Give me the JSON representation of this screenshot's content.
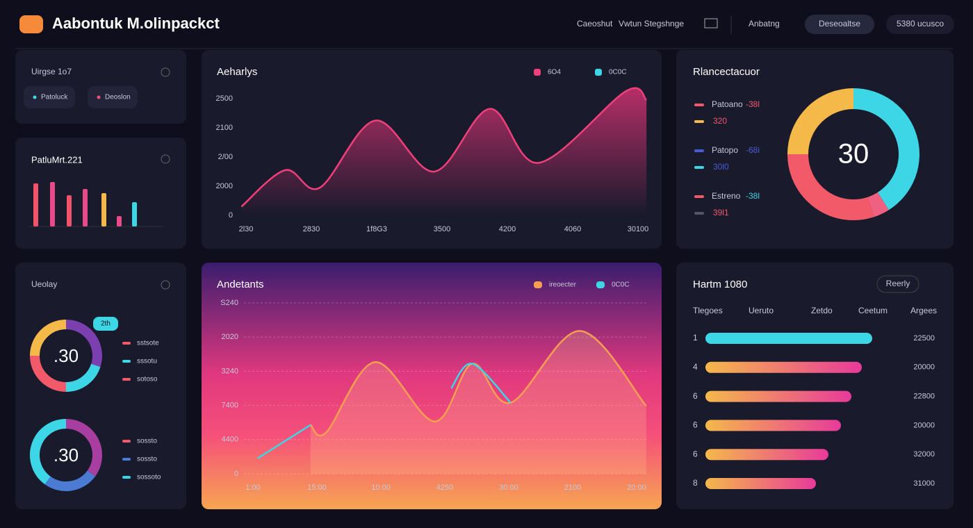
{
  "header": {
    "logo": "Aabontuk M.olinpackct",
    "nav": [
      "Caeoshut",
      "Vwtun Stegshnge"
    ],
    "tab": "Anbatng",
    "button": "Deseoaltse",
    "user": "5380 ucusco"
  },
  "summary": {
    "title": "Uirgse 1o7",
    "chips": [
      {
        "label": "Patoluck",
        "color": "#3dd6e6"
      },
      {
        "label": "Deoslon",
        "color": "#f0507a"
      }
    ]
  },
  "mini_bars": {
    "type": "bar",
    "title": "PatluMrt.221",
    "values": [
      62,
      64,
      45,
      54,
      48,
      15,
      35
    ],
    "colors": [
      "#f2536a",
      "#e84a8a",
      "#f2536a",
      "#e84a8a",
      "#f5b94a",
      "#e84a8a",
      "#3dd6e6"
    ],
    "ylim": [
      0,
      70
    ]
  },
  "activity": {
    "type": "area",
    "title": "Aeharlys",
    "legend": [
      {
        "name": "6O4",
        "color": "#f0407a"
      },
      {
        "name": "0C0C",
        "color": "#3dd6e6"
      }
    ],
    "x": [
      -0.07,
      0.6,
      1.13,
      1.98,
      2.88,
      3.73,
      4.48,
      5.81,
      6.13
    ],
    "values": [
      0.3,
      1.55,
      0.95,
      3.25,
      1.5,
      3.65,
      1.8,
      4.25,
      3.95
    ],
    "color": "#f0407a",
    "xlim": [
      0,
      6
    ],
    "ylim": [
      0,
      4
    ],
    "xticks": [
      {
        "value": 0,
        "label": "2l30"
      },
      {
        "value": 1,
        "label": "2830"
      },
      {
        "value": 2,
        "label": "1f8G3"
      },
      {
        "value": 3,
        "label": "3500"
      },
      {
        "value": 4,
        "label": "4200"
      },
      {
        "value": 5,
        "label": "4060"
      },
      {
        "value": 6,
        "label": "30100"
      }
    ],
    "yticks": [
      {
        "value": 0,
        "label": "0"
      },
      {
        "value": 1,
        "label": "2000"
      },
      {
        "value": 2,
        "label": "2/00"
      },
      {
        "value": 3,
        "label": "2100"
      },
      {
        "value": 4,
        "label": "2500"
      }
    ],
    "grid": false
  },
  "balance": {
    "type": "pie",
    "title": "Rlancectacuor",
    "center": "30",
    "values": [
      41,
      4,
      30,
      25
    ],
    "colors": [
      "#3dd6e6",
      "#f06080",
      "#f25a6a",
      "#f5b94a"
    ],
    "legend": [
      {
        "name": "Patoano",
        "delta": "-38l",
        "value": "320",
        "colors": [
          "#f25a6a",
          "#f5b94a"
        ]
      },
      {
        "name": "Patopo",
        "delta": "-68i",
        "value": "30l0",
        "colors": [
          "#4a5cd4",
          "#3dd6e6"
        ]
      },
      {
        "name": "Estreno",
        "delta": "-38l",
        "value": "39l1",
        "colors": [
          "#f25a6a",
          "#555566"
        ]
      }
    ]
  },
  "overview": {
    "title": "Ueolay",
    "badge": "2th",
    "donuts": [
      {
        "type": "pie",
        "center": ".30",
        "values": [
          30,
          20,
          25,
          25
        ],
        "colors": [
          "#7b3fb0",
          "#3dd6e6",
          "#f25a6a",
          "#f5b94a"
        ],
        "legend": [
          {
            "name": "sstsote",
            "color": "#f25a6a"
          },
          {
            "name": "sssotu",
            "color": "#3dd6e6"
          },
          {
            "name": "sotoso",
            "color": "#f25a6a"
          }
        ]
      },
      {
        "type": "pie",
        "center": ".30",
        "values": [
          35,
          25,
          40
        ],
        "colors": [
          "#a83fa0",
          "#4a7cd4",
          "#3dd6e6"
        ],
        "legend": [
          {
            "name": "sossto",
            "color": "#f25a6a"
          },
          {
            "name": "sossto",
            "color": "#4a7cd4"
          },
          {
            "name": "sossoto",
            "color": "#3dd6e6"
          }
        ]
      }
    ]
  },
  "trend": {
    "type": "line",
    "title": "Andetants",
    "xlim": [
      0,
      6
    ],
    "ylim": [
      0,
      5
    ],
    "grid": true,
    "series": [
      {
        "name": "ireoecter",
        "color": "#f5a050",
        "x": [
          0.9,
          1.15,
          1.91,
          2.84,
          3.43,
          4.03,
          5.11,
          6.15
        ],
        "values": [
          1.43,
          1.22,
          3.27,
          1.53,
          3.22,
          2.08,
          4.18,
          1.98
        ]
      },
      {
        "name": "0C0C",
        "color": "#3dd6e6",
        "x": [
          0.07,
          0.9,
          2.0,
          3.1,
          3.43,
          4.03
        ],
        "values": [
          0.45,
          1.43,
          null,
          2.5,
          3.22,
          2.08
        ]
      }
    ],
    "xticks": [
      {
        "value": 0,
        "label": "1:00"
      },
      {
        "value": 1,
        "label": "15:00"
      },
      {
        "value": 2,
        "label": "10:00"
      },
      {
        "value": 3,
        "label": "4250"
      },
      {
        "value": 4,
        "label": "30:00"
      },
      {
        "value": 5,
        "label": "2100"
      },
      {
        "value": 6,
        "label": "20:00"
      }
    ],
    "yticks": [
      {
        "value": 0,
        "label": "0"
      },
      {
        "value": 1,
        "label": "4400"
      },
      {
        "value": 2,
        "label": "7400"
      },
      {
        "value": 3,
        "label": "3240"
      },
      {
        "value": 4,
        "label": "2020"
      },
      {
        "value": 5,
        "label": "S240"
      }
    ]
  },
  "ranking": {
    "title": "Hartm 1080",
    "button": "Reerly",
    "columns": [
      "Tlegoes",
      "Ueruto",
      "Zetdo",
      "Ceetum",
      "Argees"
    ],
    "xlim": [
      0,
      240
    ],
    "rows": [
      {
        "rank": "1",
        "bar": 240,
        "amount": "22500"
      },
      {
        "rank": "4",
        "bar": 225,
        "amount": "20000"
      },
      {
        "rank": "6",
        "bar": 210,
        "amount": "22800"
      },
      {
        "rank": "6",
        "bar": 195,
        "amount": "20000"
      },
      {
        "rank": "6",
        "bar": 177,
        "amount": "32000"
      },
      {
        "rank": "8",
        "bar": 159,
        "amount": "31000"
      }
    ]
  }
}
